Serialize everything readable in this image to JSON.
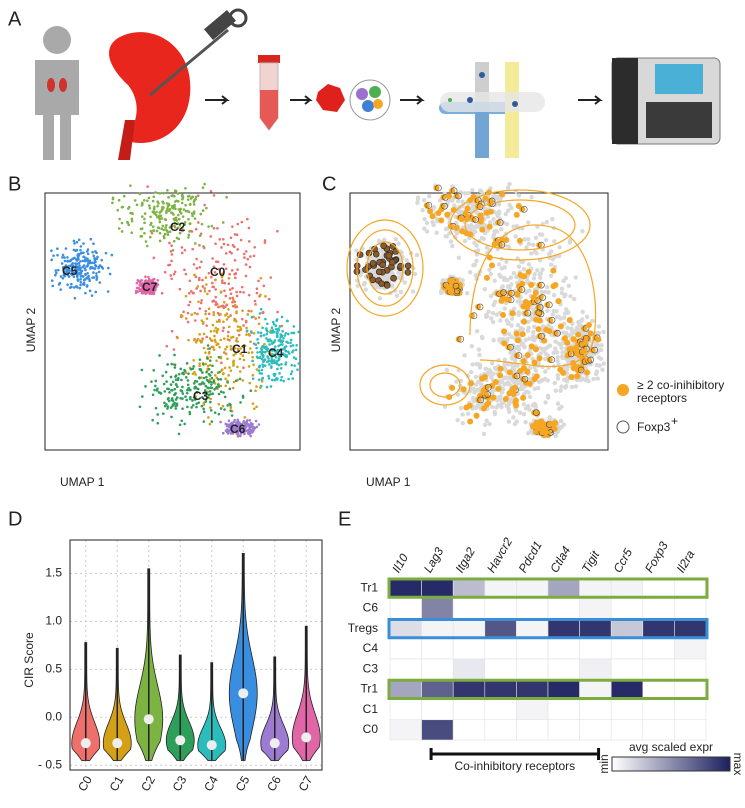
{
  "panel_labels": [
    "A",
    "B",
    "C",
    "D",
    "E"
  ],
  "umap": {
    "x_label": "UMAP 1",
    "y_label": "UMAP 2",
    "clusters": [
      {
        "name": "C0",
        "color": "#ef6f6c"
      },
      {
        "name": "C1",
        "color": "#d4a017"
      },
      {
        "name": "C2",
        "color": "#7cb342"
      },
      {
        "name": "C3",
        "color": "#2e9e5b"
      },
      {
        "name": "C4",
        "color": "#2bbcbc"
      },
      {
        "name": "C5",
        "color": "#3a8ee0"
      },
      {
        "name": "C6",
        "color": "#9c7bd0"
      },
      {
        "name": "C7",
        "color": "#e066a8"
      }
    ],
    "legend": {
      "coinhib_lines": [
        "≥  2 co-inihibitory",
        "receptors"
      ],
      "coinhib_color": "#f5a623",
      "foxp3": "Foxp3",
      "foxp3_sup": "+"
    }
  },
  "violin": {
    "type": "violin",
    "y_label": "CIR Score",
    "categories": [
      "C0",
      "C1",
      "C2",
      "C3",
      "C4",
      "C5",
      "C6",
      "C7"
    ],
    "colors": [
      "#ef6f6c",
      "#d4a017",
      "#7cb342",
      "#2e9e5b",
      "#2bbcbc",
      "#3a8ee0",
      "#9c7bd0",
      "#e066a8"
    ],
    "median": [
      -0.27,
      -0.27,
      -0.02,
      -0.24,
      -0.29,
      0.25,
      -0.27,
      -0.21
    ],
    "min": [
      -0.45,
      -0.45,
      -0.45,
      -0.45,
      -0.45,
      -0.45,
      -0.45,
      -0.45
    ],
    "max": [
      0.78,
      0.72,
      1.55,
      0.65,
      0.57,
      1.71,
      0.63,
      0.95
    ],
    "ylim": [
      -0.55,
      1.85
    ],
    "yticks": [
      {
        "value": 1.5,
        "label": "1.5"
      },
      {
        "value": 1,
        "label": "1.0"
      },
      {
        "value": 0.5,
        "label": "0.5"
      },
      {
        "value": 0,
        "label": "0.0"
      },
      {
        "value": -0.5,
        "label": "- 0.5"
      }
    ],
    "grid": true
  },
  "heatmap": {
    "genes": [
      "Il10",
      "Lag3",
      "Itga2",
      "Havcr2",
      "Pdcd1",
      "Ctla4",
      "Tigit",
      "Ccr5",
      "Foxp3",
      "Il2ra"
    ],
    "rows": [
      {
        "name": "Tr1",
        "values": [
          0.95,
          0.95,
          0.3,
          0.05,
          0.05,
          0.4,
          0.05,
          0.05,
          0,
          0
        ]
      },
      {
        "name": "C6",
        "values": [
          0,
          0.55,
          0,
          0,
          0,
          0,
          0.05,
          0,
          0,
          0
        ]
      },
      {
        "name": "Tregs",
        "values": [
          0.15,
          0.05,
          0.05,
          0.75,
          0.05,
          0.9,
          0.9,
          0.25,
          0.9,
          0.9
        ]
      },
      {
        "name": "C4",
        "values": [
          0,
          0,
          0,
          0,
          0,
          0,
          0,
          0,
          0,
          0.05
        ]
      },
      {
        "name": "C3",
        "values": [
          0,
          0,
          0.1,
          0,
          0,
          0,
          0.07,
          0,
          0,
          0
        ]
      },
      {
        "name": "Tr1",
        "values": [
          0.4,
          0.7,
          0.9,
          0.9,
          0.9,
          0.95,
          0.05,
          0.95,
          0,
          0
        ]
      },
      {
        "name": "C1",
        "values": [
          0,
          0,
          0,
          0,
          0.05,
          0,
          0,
          0,
          0,
          0
        ]
      },
      {
        "name": "C0",
        "values": [
          0.05,
          0.8,
          0,
          0,
          0,
          0,
          0,
          0,
          0,
          0
        ]
      }
    ],
    "highlights": [
      {
        "row": 0,
        "color": "#7cab3f"
      },
      {
        "row": 2,
        "color": "#3a8ed8"
      },
      {
        "row": 5,
        "color": "#7cab3f"
      }
    ],
    "bracket_label": "Co-inhibitory receptors",
    "colorbar": {
      "title": "avg scaled expr",
      "min_label": "min",
      "max_label": "max",
      "colors": [
        "#ffffff",
        "#1b1f5e"
      ]
    }
  }
}
